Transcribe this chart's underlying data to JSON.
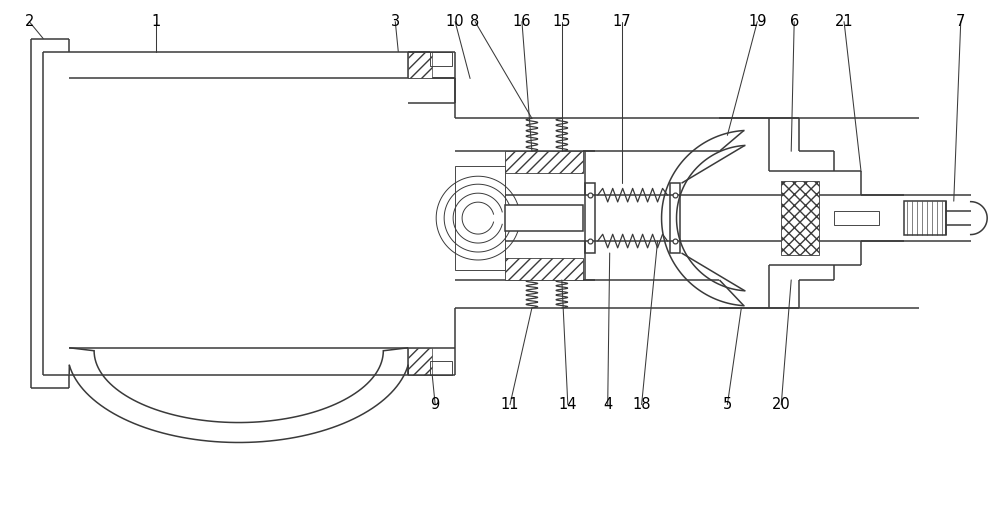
{
  "bg_color": "#ffffff",
  "line_color": "#3a3a3a",
  "label_color": "#000000",
  "lw": 1.1,
  "thin_lw": 0.65,
  "fig_width": 10.0,
  "fig_height": 5.13,
  "dpi": 100
}
